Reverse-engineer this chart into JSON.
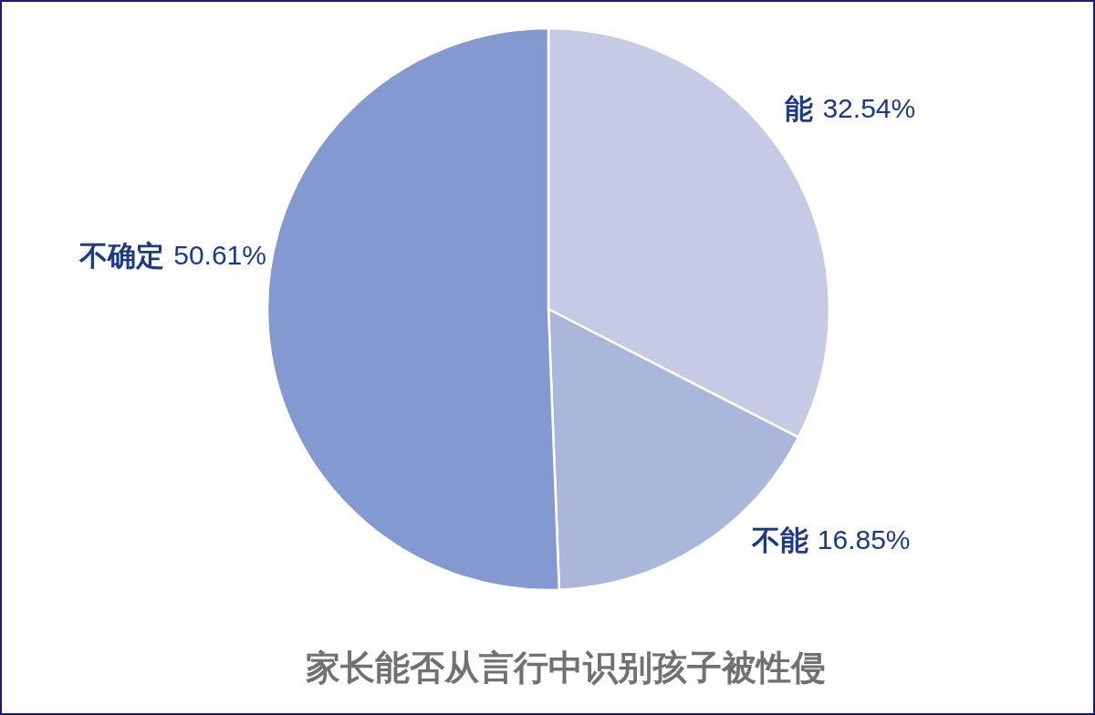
{
  "chart_data": {
    "type": "pie",
    "title": "家长能否从言行中识别孩子被性侵",
    "categories": [
      "能",
      "不能",
      "不确定"
    ],
    "values": [
      32.54,
      16.85,
      50.61
    ],
    "colors": [
      "#c5cbe5",
      "#aab6da",
      "#8499cf"
    ],
    "value_labels": [
      "32.54%",
      "16.85%",
      "50.61%"
    ]
  }
}
